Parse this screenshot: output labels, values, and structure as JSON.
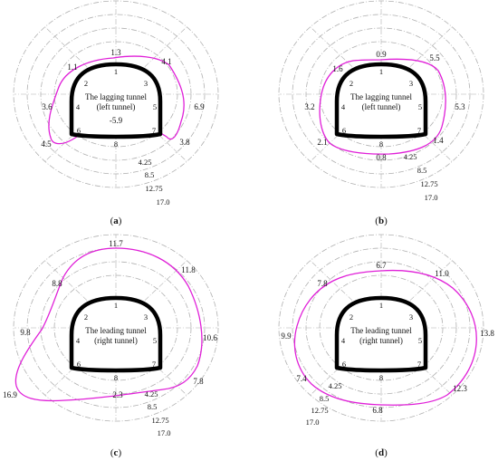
{
  "rings": [
    "4.25",
    "8.5",
    "12.75",
    "17.0"
  ],
  "point_labels": [
    "1",
    "2",
    "3",
    "4",
    "5",
    "6",
    "7",
    "8"
  ],
  "panels": [
    {
      "id": "a",
      "caption": "a",
      "tunnel_title_1": "The lagging tunnel",
      "tunnel_title_2": "(left tunnel)",
      "values": [
        "1.3",
        "1.1",
        "4.1",
        "3.6",
        "6.9",
        "4.5",
        "3.8",
        "-5.9"
      ]
    },
    {
      "id": "b",
      "caption": "b",
      "tunnel_title_1": "The lagging tunnel",
      "tunnel_title_2": "(left tunnel)",
      "values": [
        "0.9",
        "1.6",
        "5.5",
        "3.2",
        "5.3",
        "2.1",
        "1.4",
        "0.8"
      ]
    },
    {
      "id": "c",
      "caption": "c",
      "tunnel_title_1": "The leading tunnel",
      "tunnel_title_2": "(right tunnel)",
      "values": [
        "11.7",
        "8.8",
        "11.8",
        "9.8",
        "10.6",
        "16.9",
        "7.8",
        "2.3"
      ]
    },
    {
      "id": "d",
      "caption": "d",
      "tunnel_title_1": "The leading tunnel",
      "tunnel_title_2": "(right tunnel)",
      "values": [
        "6.7",
        "7.8",
        "11.0",
        "9.9",
        "13.8",
        "7.4",
        "12.3",
        "6.8"
      ]
    }
  ]
}
